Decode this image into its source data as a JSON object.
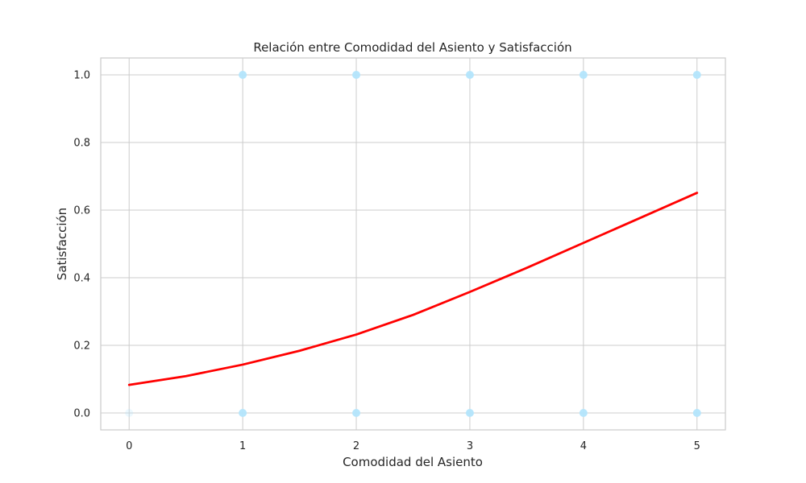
{
  "chart_data": {
    "type": "scatter",
    "title": "Relación entre Comodidad del Asiento y Satisfacción",
    "xlabel": "Comodidad del Asiento",
    "ylabel": "Satisfacción",
    "xlim": [
      -0.25,
      5.25
    ],
    "ylim": [
      -0.05,
      1.05
    ],
    "xticks": [
      0,
      1,
      2,
      3,
      4,
      5
    ],
    "xtick_labels": [
      "0",
      "1",
      "2",
      "3",
      "4",
      "5"
    ],
    "yticks": [
      0.0,
      0.2,
      0.4,
      0.6,
      0.8,
      1.0
    ],
    "ytick_labels": [
      "0.0",
      "0.2",
      "0.4",
      "0.6",
      "0.8",
      "1.0"
    ],
    "grid": true,
    "series": [
      {
        "kind": "scatter",
        "color": "#b3e5fc",
        "points": [
          {
            "x": 0,
            "y": 0,
            "faint": true
          },
          {
            "x": 1,
            "y": 0
          },
          {
            "x": 1,
            "y": 1
          },
          {
            "x": 2,
            "y": 0
          },
          {
            "x": 2,
            "y": 1
          },
          {
            "x": 3,
            "y": 0
          },
          {
            "x": 3,
            "y": 1
          },
          {
            "x": 4,
            "y": 0
          },
          {
            "x": 4,
            "y": 1
          },
          {
            "x": 5,
            "y": 0
          },
          {
            "x": 5,
            "y": 1
          }
        ]
      },
      {
        "kind": "line",
        "color": "#ff0000",
        "x": [
          0,
          0.5,
          1,
          1.5,
          2,
          2.5,
          3,
          3.5,
          4,
          4.5,
          5
        ],
        "y": [
          0.083,
          0.109,
          0.143,
          0.184,
          0.232,
          0.29,
          0.358,
          0.429,
          0.503,
          0.577,
          0.651
        ]
      }
    ]
  }
}
